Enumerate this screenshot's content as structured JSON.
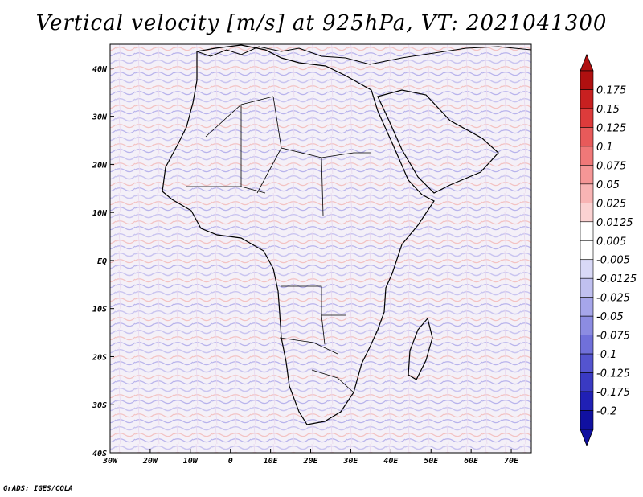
{
  "title": "Vertical velocity [m/s] at 925hPa, VT: 2021041300",
  "credit": "GrADS: IGES/COLA",
  "map": {
    "lat_labels": [
      "40N",
      "30N",
      "20N",
      "10N",
      "EQ",
      "10S",
      "20S",
      "30S",
      "40S"
    ],
    "lon_labels": [
      "30W",
      "20W",
      "10W",
      "0",
      "10E",
      "20E",
      "30E",
      "40E",
      "50E",
      "60E",
      "70E"
    ],
    "lon_range": [
      -30,
      75
    ],
    "lat_range": [
      -40,
      45
    ]
  },
  "colorbar": {
    "levels": [
      "0.175",
      "0.15",
      "0.125",
      "0.1",
      "0.075",
      "0.05",
      "0.025",
      "0.0125",
      "0.005",
      "-0.005",
      "-0.0125",
      "-0.025",
      "-0.05",
      "-0.075",
      "-0.1",
      "-0.125",
      "-0.175",
      "-0.2"
    ],
    "colors": [
      "#b01010",
      "#c82020",
      "#dd3b3b",
      "#e85a5a",
      "#f07878",
      "#f59696",
      "#f8b4b4",
      "#fbd2d2",
      "#ffffff",
      "#ffffff",
      "#d9d9f7",
      "#c0c0f0",
      "#a6a6ea",
      "#8c8ce2",
      "#7070da",
      "#5454cf",
      "#3a3ac3",
      "#2020b5",
      "#1010a0"
    ]
  }
}
